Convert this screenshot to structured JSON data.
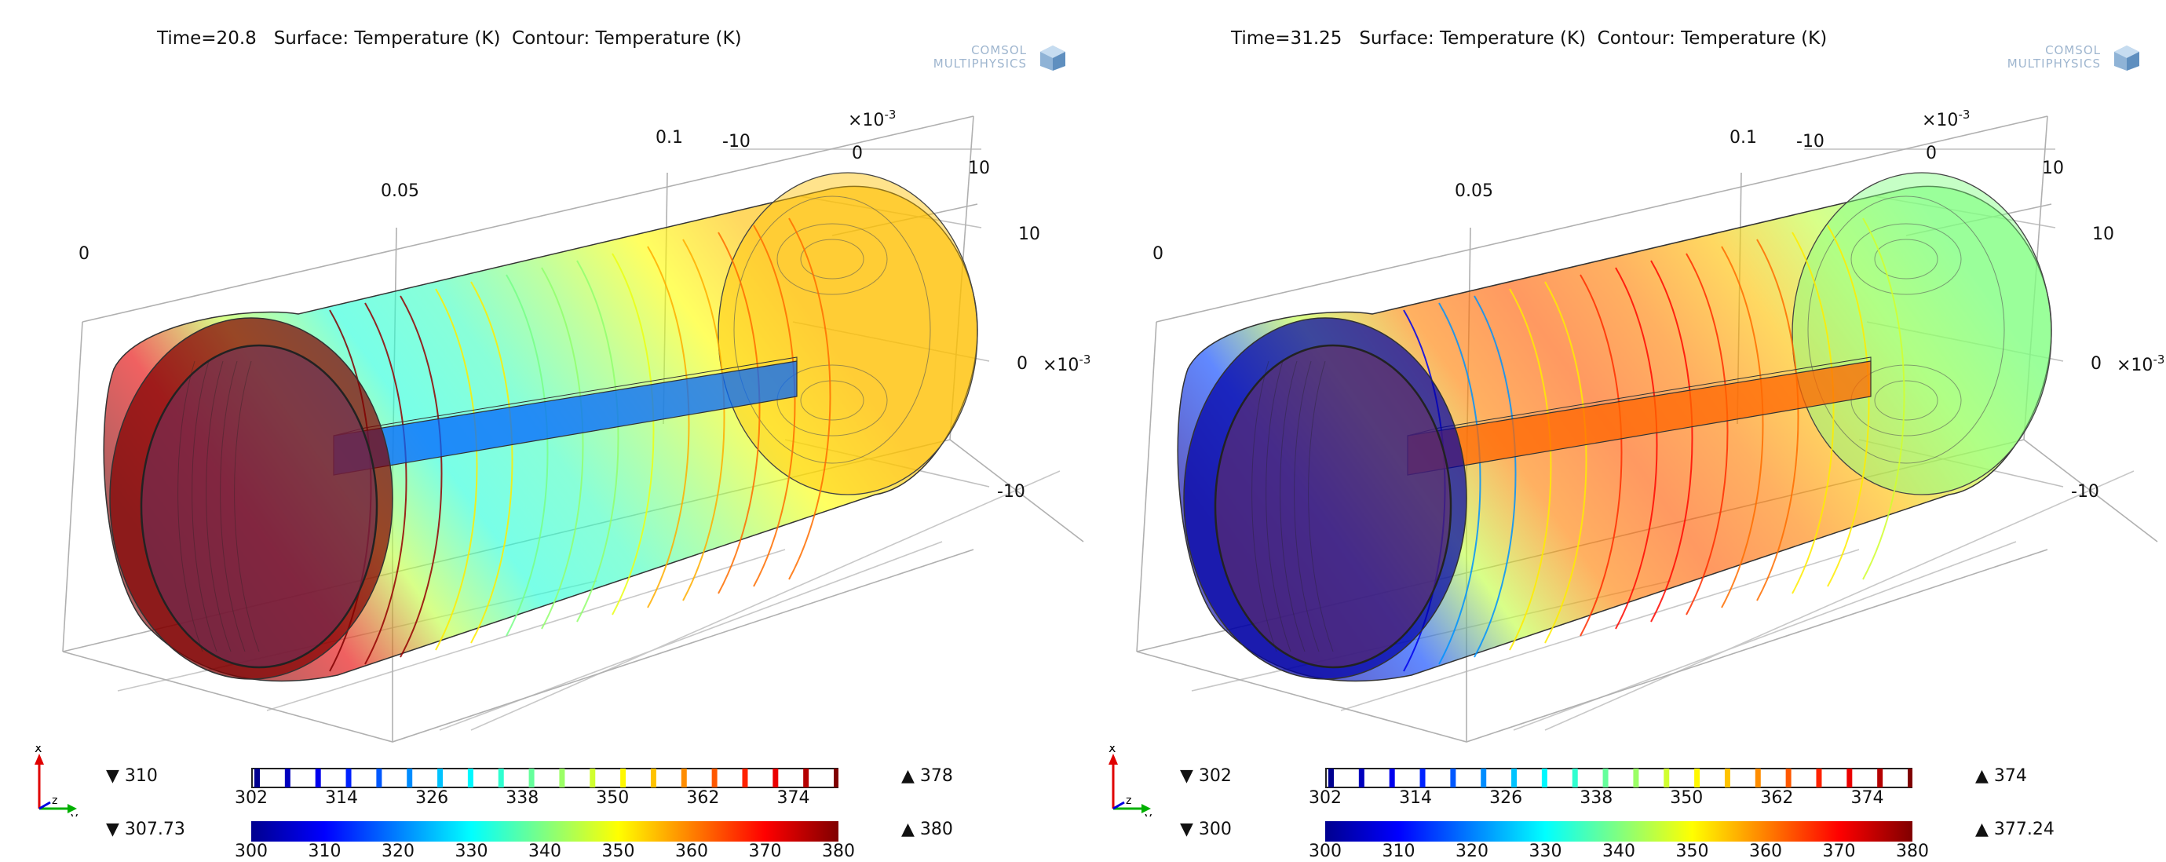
{
  "colors": {
    "jet": [
      "#00008f",
      "#0000ff",
      "#0080ff",
      "#00ffff",
      "#80ff80",
      "#ffff00",
      "#ff8000",
      "#ff0000",
      "#800000"
    ],
    "grid": "#b0b0b0",
    "axis_x": "#e00000",
    "axis_y": "#00b000",
    "axis_z": "#0000e0"
  },
  "logo": {
    "line1": "COMSOL",
    "line2": "MULTIPHYSICS"
  },
  "chart_data": [
    {
      "type": "3d-surface-contour",
      "title": "Time=20.8   Surface: Temperature (K)  Contour: Temperature (K)",
      "time": 20.8,
      "axis_ticks": {
        "x_axis": [
          "0",
          "0.05",
          "0.1"
        ],
        "y_axis": [
          "-10",
          "0",
          "10"
        ],
        "y_exponent": "×10",
        "z_axis": [
          "10",
          "0",
          "-10"
        ],
        "z_exponent": "×10",
        "exponent_power": "-3"
      },
      "triad": {
        "x": "x",
        "y": "y",
        "z": "z"
      },
      "surface_colorscale": {
        "min": 307.73,
        "max": 380,
        "min_label": "▼ 307.73",
        "max_label": "▲ 380",
        "ticks": [
          "300",
          "310",
          "320",
          "330",
          "340",
          "350",
          "360",
          "370",
          "380"
        ]
      },
      "contour_legend": {
        "min": 310,
        "max": 378,
        "min_label": "▼ 310",
        "max_label": "▲ 378",
        "ticks": [
          "302",
          "314",
          "326",
          "338",
          "350",
          "362",
          "374"
        ]
      },
      "field_profile": {
        "description_values_along_axis": [
          380,
          372,
          345,
          333,
          335,
          342,
          350,
          355,
          355
        ],
        "rod_temperature": 318
      }
    },
    {
      "type": "3d-surface-contour",
      "title": "Time=31.25   Surface: Temperature (K)  Contour: Temperature (K)",
      "time": 31.25,
      "axis_ticks": {
        "x_axis": [
          "0",
          "0.05",
          "0.1"
        ],
        "y_axis": [
          "-10",
          "0",
          "10"
        ],
        "y_exponent": "×10",
        "z_axis": [
          "10",
          "0",
          "-10"
        ],
        "z_exponent": "×10",
        "exponent_power": "-3"
      },
      "triad": {
        "x": "x",
        "y": "y",
        "z": "z"
      },
      "surface_colorscale": {
        "min": 300,
        "max": 377.24,
        "min_label": "▼ 300",
        "max_label": "▲ 377.24",
        "ticks": [
          "300",
          "310",
          "320",
          "330",
          "340",
          "350",
          "360",
          "370",
          "380"
        ]
      },
      "contour_legend": {
        "min": 302,
        "max": 374,
        "min_label": "▼ 302",
        "max_label": "▲ 374",
        "ticks": [
          "302",
          "314",
          "326",
          "338",
          "350",
          "362",
          "374"
        ]
      },
      "field_profile": {
        "description_values_along_axis": [
          302,
          315,
          345,
          360,
          363,
          360,
          355,
          345,
          340
        ],
        "rod_temperature": 362
      }
    }
  ]
}
